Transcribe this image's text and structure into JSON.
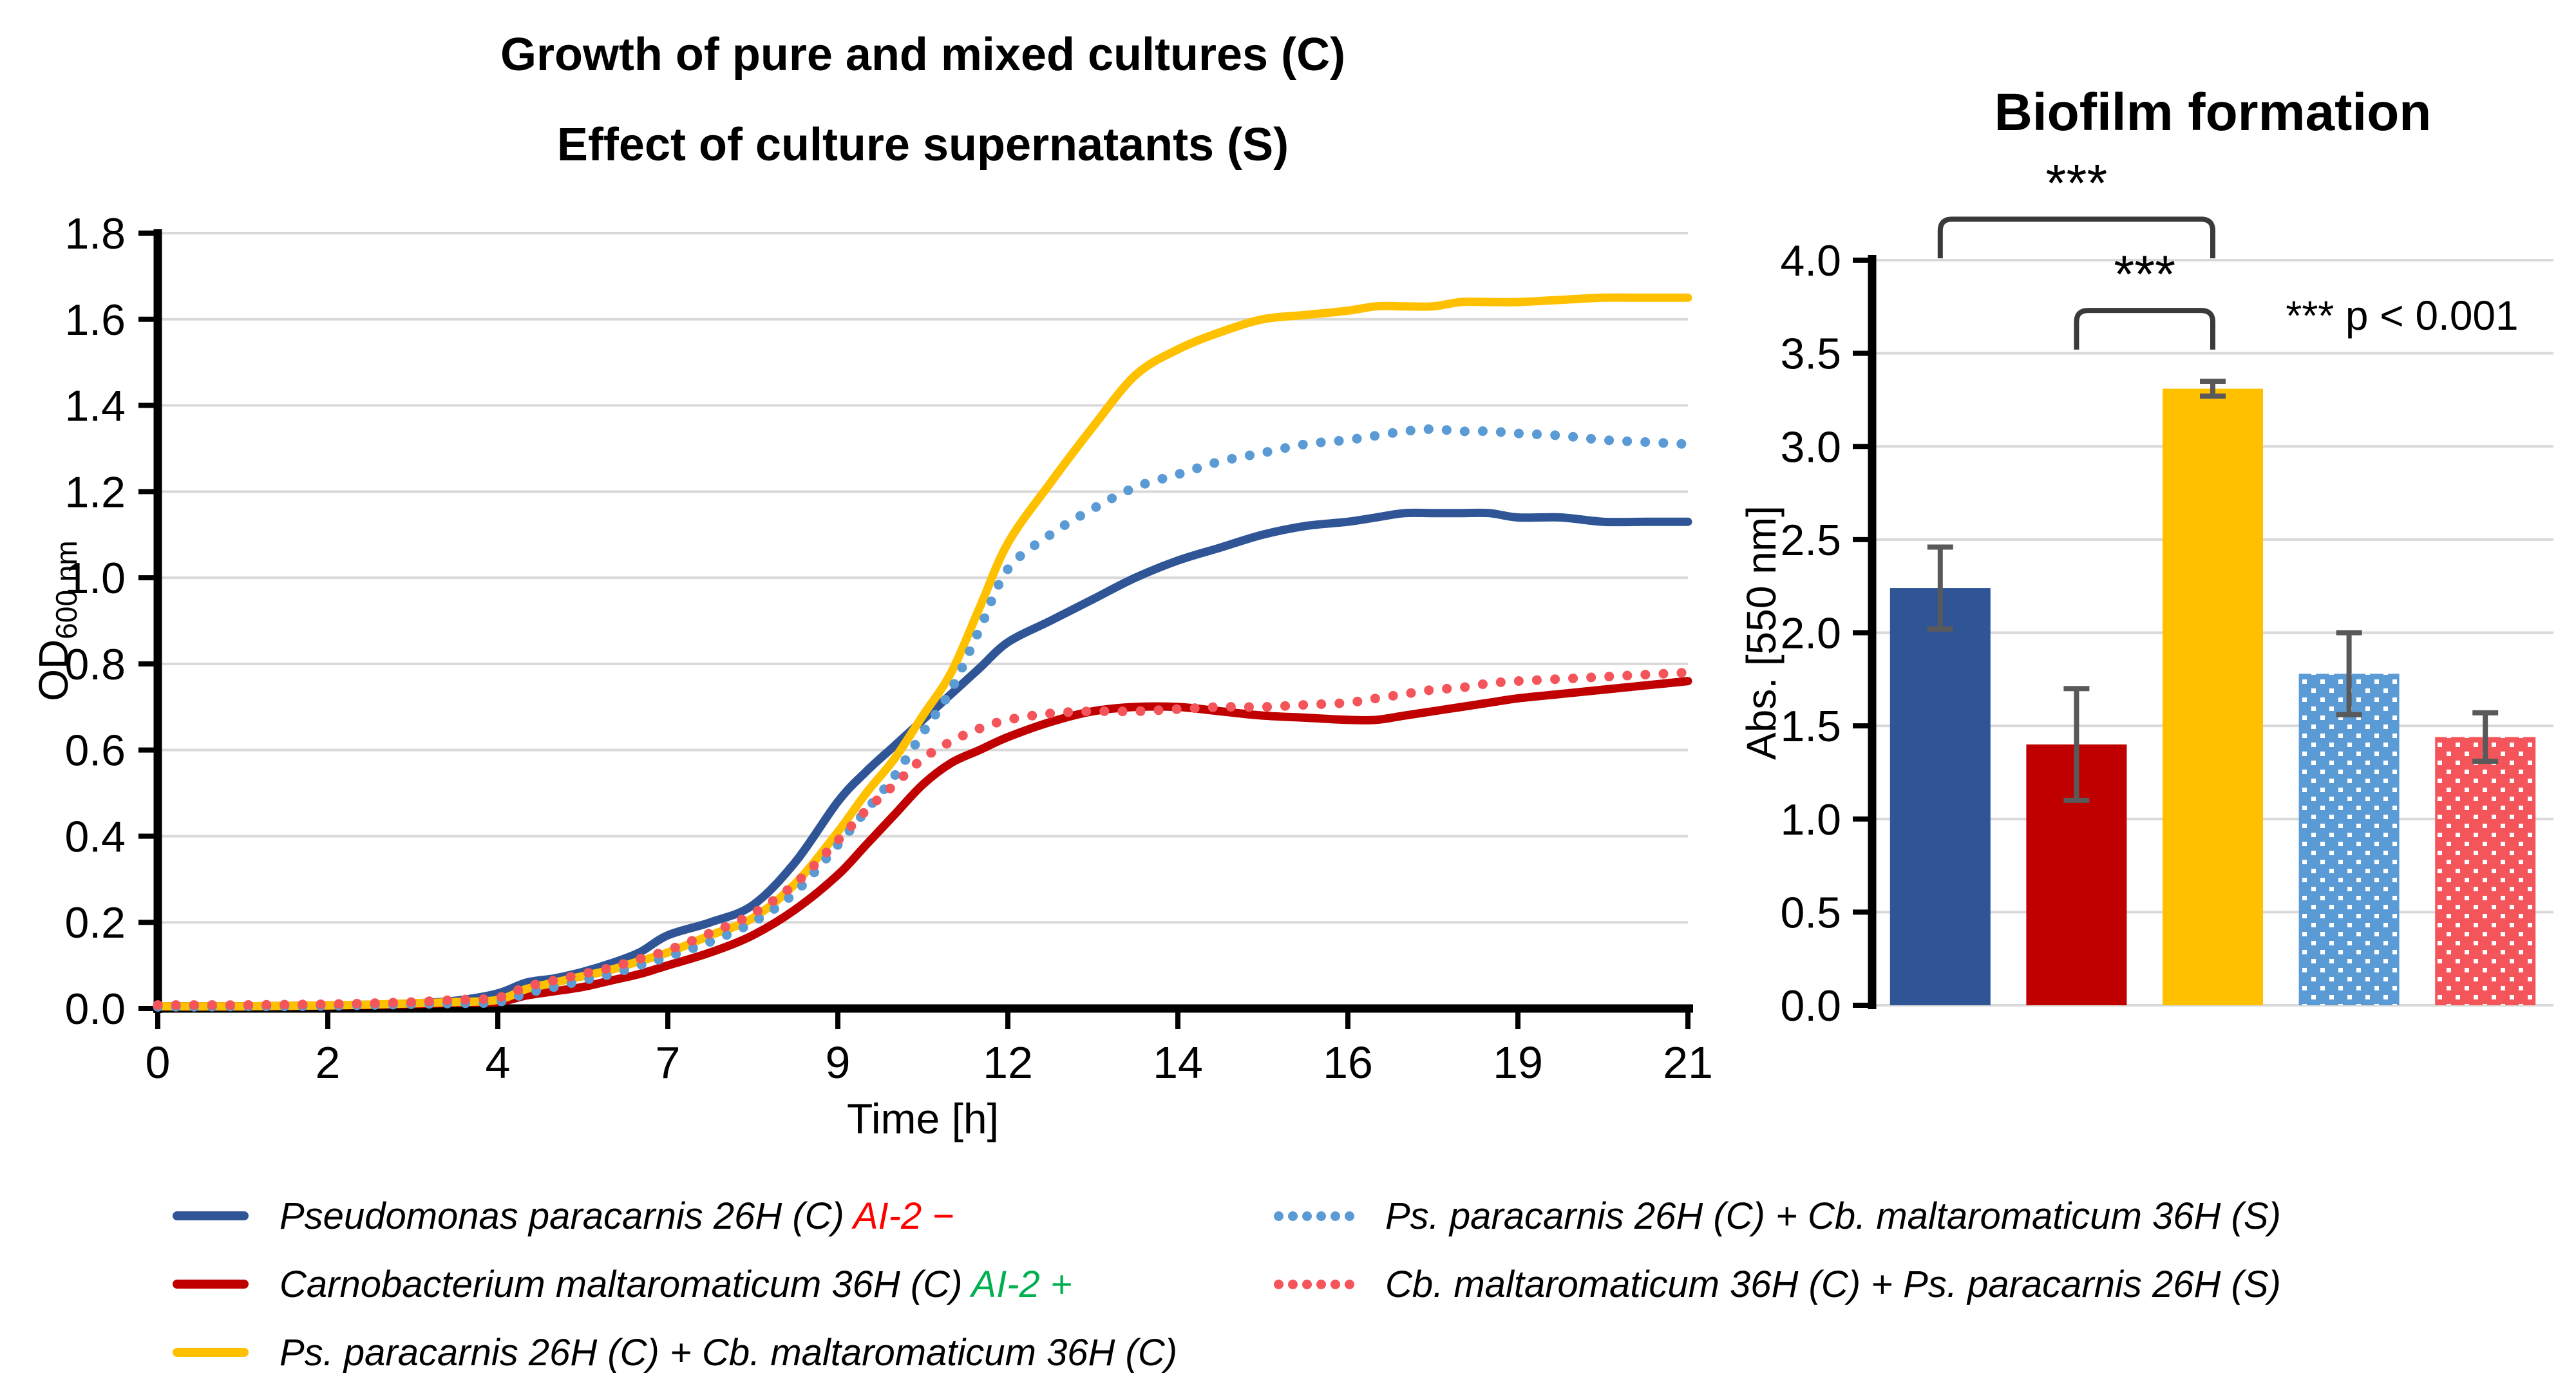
{
  "chart_data": [
    {
      "type": "line",
      "title": "Growth of pure and mixed cultures (C)",
      "subtitle": "Effect of culture supernatants (S)",
      "xlabel": "Time [h]",
      "ylabel": "OD",
      "ylabel_sub": "600 nm",
      "xticks": [
        0,
        2,
        4,
        7,
        9,
        12,
        14,
        16,
        19,
        21
      ],
      "ylim": [
        0,
        1.8
      ],
      "ytick_step": 0.2,
      "grid": true,
      "legend_position": "bottom",
      "series": [
        {
          "name": "Pseudomonas paracarnis 26H (C) AI-2 −",
          "style": "solid",
          "color": "#2f5597",
          "points": [
            [
              0,
              0.005
            ],
            [
              0.5,
              0.005
            ],
            [
              1,
              0.005
            ],
            [
              1.5,
              0.006
            ],
            [
              2,
              0.007
            ],
            [
              2.5,
              0.009
            ],
            [
              3,
              0.012
            ],
            [
              3.5,
              0.018
            ],
            [
              4,
              0.035
            ],
            [
              4.5,
              0.06
            ],
            [
              5,
              0.07
            ],
            [
              5.5,
              0.085
            ],
            [
              6,
              0.105
            ],
            [
              6.5,
              0.13
            ],
            [
              7,
              0.17
            ],
            [
              7.5,
              0.2
            ],
            [
              8,
              0.24
            ],
            [
              8.5,
              0.34
            ],
            [
              9,
              0.48
            ],
            [
              9.5,
              0.55
            ],
            [
              10,
              0.61
            ],
            [
              10.5,
              0.67
            ],
            [
              11,
              0.73
            ],
            [
              11.5,
              0.79
            ],
            [
              12,
              0.85
            ],
            [
              12.5,
              0.9
            ],
            [
              13,
              0.95
            ],
            [
              13.5,
              1.0
            ],
            [
              14,
              1.04
            ],
            [
              14.5,
              1.07
            ],
            [
              15,
              1.1
            ],
            [
              15.5,
              1.12
            ],
            [
              16,
              1.13
            ],
            [
              16.5,
              1.14
            ],
            [
              17,
              1.15
            ],
            [
              17.5,
              1.15
            ],
            [
              18,
              1.15
            ],
            [
              18.5,
              1.15
            ],
            [
              19,
              1.14
            ],
            [
              19.5,
              1.14
            ],
            [
              20,
              1.13
            ],
            [
              20.5,
              1.13
            ],
            [
              21,
              1.13
            ]
          ]
        },
        {
          "name": "Carnobacterium maltaromaticum 36H (C) AI-2 +",
          "style": "solid",
          "color": "#c00000",
          "points": [
            [
              0,
              0.005
            ],
            [
              0.5,
              0.005
            ],
            [
              1,
              0.005
            ],
            [
              1.5,
              0.006
            ],
            [
              2,
              0.007
            ],
            [
              2.5,
              0.008
            ],
            [
              3,
              0.01
            ],
            [
              3.5,
              0.013
            ],
            [
              4,
              0.015
            ],
            [
              4.5,
              0.03
            ],
            [
              5,
              0.04
            ],
            [
              5.5,
              0.05
            ],
            [
              6,
              0.065
            ],
            [
              6.5,
              0.08
            ],
            [
              7,
              0.1
            ],
            [
              7.5,
              0.13
            ],
            [
              8,
              0.17
            ],
            [
              8.5,
              0.23
            ],
            [
              9,
              0.31
            ],
            [
              9.5,
              0.38
            ],
            [
              10,
              0.45
            ],
            [
              10.5,
              0.52
            ],
            [
              11,
              0.57
            ],
            [
              11.5,
              0.6
            ],
            [
              12,
              0.63
            ],
            [
              12.5,
              0.665
            ],
            [
              13,
              0.69
            ],
            [
              13.5,
              0.7
            ],
            [
              14,
              0.7
            ],
            [
              14.5,
              0.69
            ],
            [
              15,
              0.68
            ],
            [
              15.5,
              0.675
            ],
            [
              16,
              0.67
            ],
            [
              16.5,
              0.67
            ],
            [
              17,
              0.68
            ],
            [
              17.5,
              0.69
            ],
            [
              18,
              0.7
            ],
            [
              18.5,
              0.71
            ],
            [
              19,
              0.72
            ],
            [
              19.5,
              0.73
            ],
            [
              20,
              0.74
            ],
            [
              20.5,
              0.75
            ],
            [
              21,
              0.76
            ]
          ]
        },
        {
          "name": "Ps. paracarnis 26H (C) + Cb. maltaromaticum 36H (C)",
          "style": "solid",
          "color": "#ffc000",
          "points": [
            [
              0,
              0.005
            ],
            [
              0.5,
              0.005
            ],
            [
              1,
              0.005
            ],
            [
              1.5,
              0.006
            ],
            [
              2,
              0.007
            ],
            [
              2.5,
              0.009
            ],
            [
              3,
              0.012
            ],
            [
              3.5,
              0.015
            ],
            [
              4,
              0.02
            ],
            [
              4.5,
              0.045
            ],
            [
              5,
              0.06
            ],
            [
              5.5,
              0.075
            ],
            [
              6,
              0.09
            ],
            [
              6.5,
              0.11
            ],
            [
              7,
              0.13
            ],
            [
              7.5,
              0.17
            ],
            [
              8,
              0.21
            ],
            [
              8.5,
              0.29
            ],
            [
              9,
              0.41
            ],
            [
              9.5,
              0.5
            ],
            [
              10,
              0.58
            ],
            [
              10.5,
              0.68
            ],
            [
              11,
              0.78
            ],
            [
              11.5,
              0.93
            ],
            [
              12,
              1.08
            ],
            [
              12.5,
              1.22
            ],
            [
              13,
              1.35
            ],
            [
              13.5,
              1.47
            ],
            [
              14,
              1.53
            ],
            [
              14.5,
              1.57
            ],
            [
              15,
              1.6
            ],
            [
              15.5,
              1.61
            ],
            [
              16,
              1.62
            ],
            [
              16.5,
              1.63
            ],
            [
              17,
              1.63
            ],
            [
              17.5,
              1.63
            ],
            [
              18,
              1.64
            ],
            [
              18.5,
              1.64
            ],
            [
              19,
              1.64
            ],
            [
              19.5,
              1.645
            ],
            [
              20,
              1.65
            ],
            [
              20.5,
              1.65
            ],
            [
              21,
              1.65
            ]
          ]
        },
        {
          "name": "Ps. paracarnis 26H (C) + Cb. maltaromaticum 36H (S)",
          "style": "dotted",
          "color": "#5b9bd5",
          "points": [
            [
              0,
              0.004
            ],
            [
              0.5,
              0.004
            ],
            [
              1,
              0.005
            ],
            [
              1.5,
              0.005
            ],
            [
              2,
              0.006
            ],
            [
              2.5,
              0.008
            ],
            [
              3,
              0.01
            ],
            [
              3.5,
              0.012
            ],
            [
              4,
              0.015
            ],
            [
              4.5,
              0.035
            ],
            [
              5,
              0.05
            ],
            [
              5.5,
              0.065
            ],
            [
              6,
              0.08
            ],
            [
              6.5,
              0.1
            ],
            [
              7,
              0.12
            ],
            [
              7.5,
              0.155
            ],
            [
              8,
              0.2
            ],
            [
              8.5,
              0.27
            ],
            [
              9,
              0.38
            ],
            [
              9.5,
              0.46
            ],
            [
              10,
              0.54
            ],
            [
              10.5,
              0.64
            ],
            [
              11,
              0.74
            ],
            [
              11.5,
              0.88
            ],
            [
              12,
              1.02
            ],
            [
              12.5,
              1.1
            ],
            [
              13,
              1.16
            ],
            [
              13.5,
              1.21
            ],
            [
              14,
              1.24
            ],
            [
              14.5,
              1.27
            ],
            [
              15,
              1.29
            ],
            [
              15.5,
              1.31
            ],
            [
              16,
              1.32
            ],
            [
              16.5,
              1.33
            ],
            [
              17,
              1.34
            ],
            [
              17.5,
              1.345
            ],
            [
              18,
              1.34
            ],
            [
              18.5,
              1.34
            ],
            [
              19,
              1.335
            ],
            [
              19.5,
              1.33
            ],
            [
              20,
              1.32
            ],
            [
              20.5,
              1.315
            ],
            [
              21,
              1.31
            ]
          ]
        },
        {
          "name": "Cb. maltaromaticum 36H (C) + Ps. paracarnis 26H (S)",
          "style": "dotted",
          "color": "#f4555a",
          "points": [
            [
              0,
              0.008
            ],
            [
              0.5,
              0.008
            ],
            [
              1,
              0.008
            ],
            [
              1.5,
              0.009
            ],
            [
              2,
              0.01
            ],
            [
              2.5,
              0.012
            ],
            [
              3,
              0.015
            ],
            [
              3.5,
              0.02
            ],
            [
              4,
              0.025
            ],
            [
              4.5,
              0.05
            ],
            [
              5,
              0.065
            ],
            [
              5.5,
              0.08
            ],
            [
              6,
              0.095
            ],
            [
              6.5,
              0.115
            ],
            [
              7,
              0.135
            ],
            [
              7.5,
              0.175
            ],
            [
              8,
              0.22
            ],
            [
              8.5,
              0.29
            ],
            [
              9,
              0.39
            ],
            [
              9.5,
              0.46
            ],
            [
              10,
              0.52
            ],
            [
              10.5,
              0.58
            ],
            [
              11,
              0.62
            ],
            [
              11.5,
              0.65
            ],
            [
              12,
              0.67
            ],
            [
              12.5,
              0.685
            ],
            [
              13,
              0.69
            ],
            [
              13.5,
              0.69
            ],
            [
              14,
              0.695
            ],
            [
              14.5,
              0.7
            ],
            [
              15,
              0.7
            ],
            [
              15.5,
              0.705
            ],
            [
              16,
              0.71
            ],
            [
              16.5,
              0.72
            ],
            [
              17,
              0.73
            ],
            [
              17.5,
              0.74
            ],
            [
              18,
              0.745
            ],
            [
              18.5,
              0.755
            ],
            [
              19,
              0.76
            ],
            [
              19.5,
              0.765
            ],
            [
              20,
              0.77
            ],
            [
              20.5,
              0.775
            ],
            [
              21,
              0.78
            ]
          ]
        }
      ]
    },
    {
      "type": "bar",
      "title": "Biofilm formation",
      "ylabel": "Abs. [550 nm]",
      "ylim": [
        0,
        4
      ],
      "ytick_step": 0.5,
      "grid": true,
      "categories": [
        "Pseudomonas paracarnis 26H (C)",
        "Carnobacterium maltaromaticum 36H (C)",
        "Ps. paracarnis 26H (C) + Cb. maltaromaticum 36H (C)",
        "Ps. paracarnis 26H (C) + Cb. maltaromaticum 36H (S)",
        "Cb. maltaromaticum 36H (C) + Ps. paracarnis 26H (S)"
      ],
      "values": [
        2.24,
        1.4,
        3.31,
        1.78,
        1.44
      ],
      "errors": [
        0.22,
        0.3,
        0.04,
        0.22,
        0.13
      ],
      "colors": [
        "#2f5597",
        "#c00000",
        "#ffc000",
        "#5b9bd5",
        "#f4555a"
      ],
      "patterns": [
        false,
        false,
        false,
        true,
        true
      ],
      "significance": [
        {
          "from": 0,
          "to": 2,
          "label": "***",
          "bar_y": 4.22,
          "leg_drop": 0.21
        },
        {
          "from": 1,
          "to": 2,
          "label": "***",
          "bar_y": 3.73,
          "leg_drop": 0.21
        }
      ],
      "note": "*** p < 0.001"
    }
  ],
  "legend": {
    "items": [
      {
        "col": 0,
        "row": 0,
        "swatch": "solid",
        "color": "#2f5597",
        "segments": [
          {
            "t": "Pseudomonas paracarnis"
          },
          {
            "t": " 26H (C) "
          },
          {
            "t": "AI-2 −",
            "c": "#ff0000"
          }
        ]
      },
      {
        "col": 0,
        "row": 1,
        "swatch": "solid",
        "color": "#c00000",
        "segments": [
          {
            "t": "Carnobacterium maltaromaticum"
          },
          {
            "t": " 36H (C) "
          },
          {
            "t": "AI-2 +",
            "c": "#00b050"
          }
        ]
      },
      {
        "col": 0,
        "row": 2,
        "swatch": "solid",
        "color": "#ffc000",
        "segments": [
          {
            "t": "Ps. paracarnis"
          },
          {
            "t": " 26H (C) + "
          },
          {
            "t": "Cb. maltaromaticum"
          },
          {
            "t": " 36H (C)"
          }
        ]
      },
      {
        "col": 1,
        "row": 0,
        "swatch": "dotted",
        "color": "#5b9bd5",
        "segments": [
          {
            "t": "Ps. paracarnis"
          },
          {
            "t": " 26H (C) + "
          },
          {
            "t": "Cb. maltaromaticum"
          },
          {
            "t": " 36H (S)"
          }
        ]
      },
      {
        "col": 1,
        "row": 1,
        "swatch": "dotted",
        "color": "#f4555a",
        "segments": [
          {
            "t": "Cb. maltaromaticum"
          },
          {
            "t": " 36H (C) + "
          },
          {
            "t": "Ps. paracarnis"
          },
          {
            "t": " 26H (S)"
          }
        ]
      }
    ]
  },
  "style": {
    "grid_color": "#d9d9d9",
    "axis_color": "#000000",
    "error_bar_color": "#595959",
    "bracket_color": "#3a3a3a"
  }
}
